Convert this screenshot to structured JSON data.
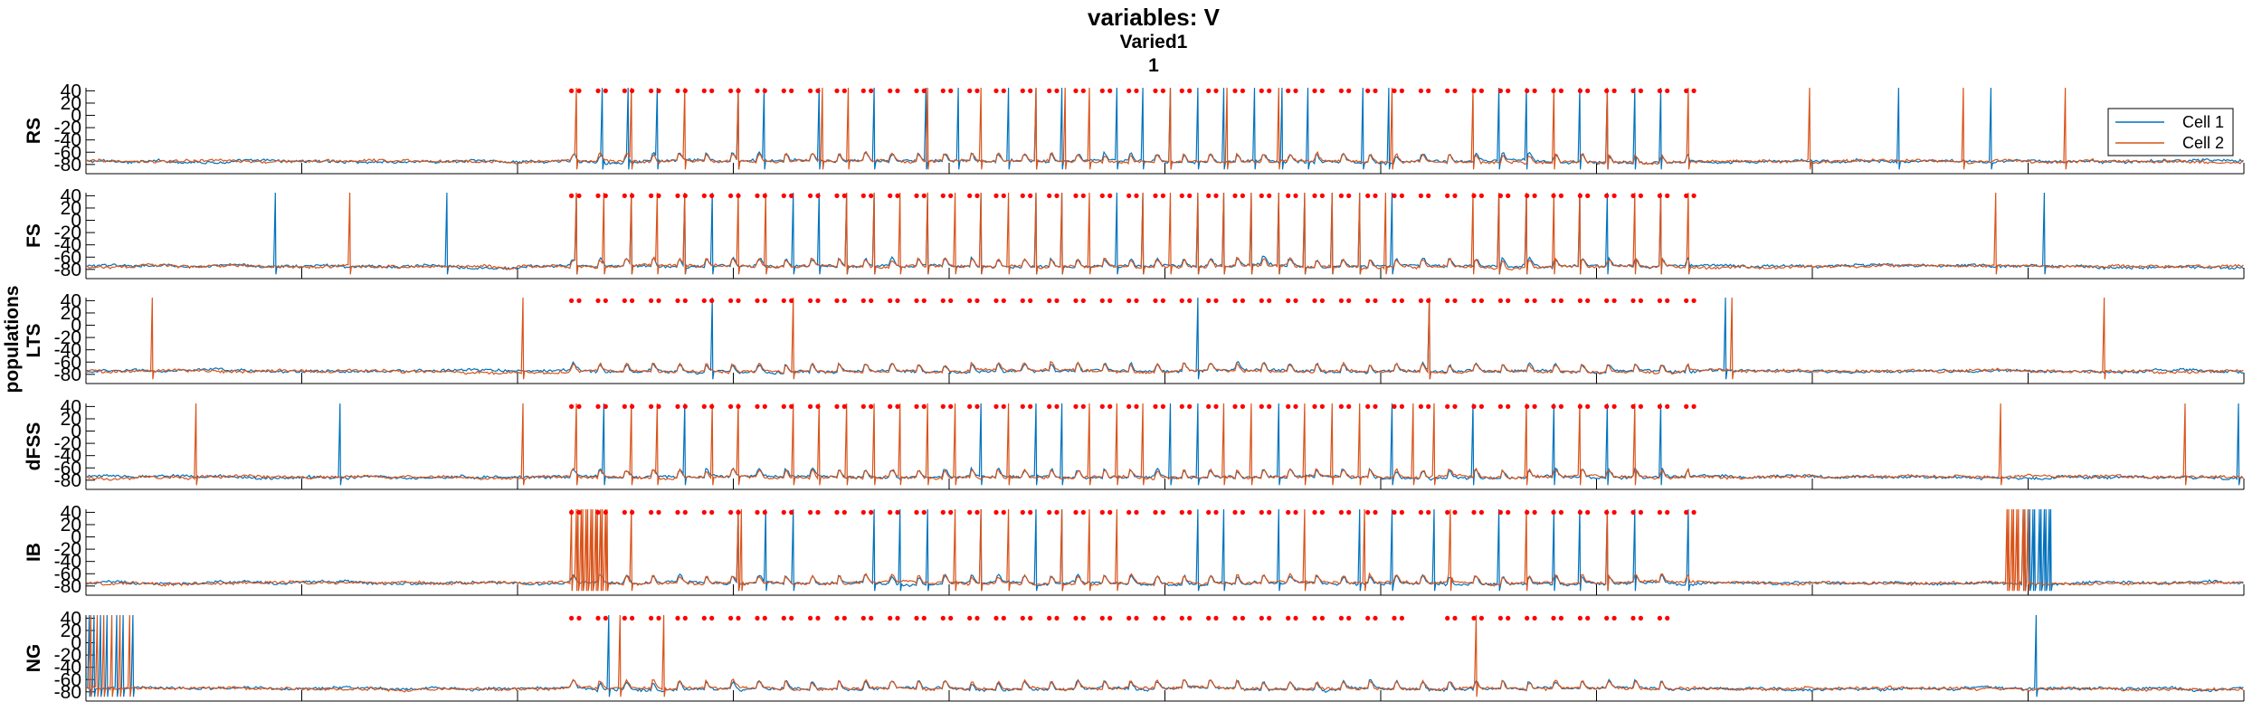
{
  "chart_data": {
    "type": "line",
    "title": "variables: V",
    "subtitle_lines": [
      "Varied1",
      "1"
    ],
    "ylabel": "populations",
    "xlim": [
      0,
      2000
    ],
    "ylim": [
      -95,
      45
    ],
    "x_ticks": [
      "0",
      "200",
      "400",
      "600",
      "800",
      "1000",
      "1200",
      "1400",
      "1600",
      "1800",
      "2000"
    ],
    "y_ticks": [
      "40",
      "20",
      "0",
      "-20",
      "-40",
      "-60",
      "-80"
    ],
    "legend": {
      "entries": [
        "Cell 1",
        "Cell 2"
      ],
      "placement": "top-right of first panel"
    },
    "series_colors": {
      "Cell 1": "#0072BD",
      "Cell 2": "#D95319"
    },
    "marker_color": "#FF0000",
    "marker_y": 40,
    "baseline_mV": -75,
    "panels": [
      {
        "name": "RS",
        "marker_range": [
          450,
          1485
        ],
        "marker_period": 24.6,
        "marker_phase": 450,
        "series": [
          {
            "name": "Cell 1",
            "spikes": [
              478,
              503,
              530,
              604,
              628,
              680,
              730,
              778,
              808,
              855,
              880,
              905,
              955,
              980,
              1005,
              1030,
              1055,
              1083,
              1108,
              1133,
              1183,
              1208,
              1310,
              1335,
              1385,
              1410,
              1435,
              1460,
              1680,
              1765
            ]
          },
          {
            "name": "Cell 2",
            "spikes": [
              455,
              505,
              555,
              605,
              682,
              707,
              780,
              830,
              880,
              908,
              930,
              1005,
              1058,
              1105,
              1210,
              1285,
              1360,
              1410,
              1485,
              1598,
              1740,
              1835
            ]
          }
        ]
      },
      {
        "name": "FS",
        "marker_range": [
          450,
          1485
        ],
        "marker_period": 24.6,
        "marker_phase": 450,
        "series": [
          {
            "name": "Cell 1",
            "spikes": [
              175,
              335,
              455,
              505,
              555,
              580,
              655,
              680,
              705,
              730,
              780,
              830,
              880,
              905,
              955,
              980,
              1030,
              1055,
              1080,
              1105,
              1130,
              1155,
              1180,
              1210,
              1310,
              1335,
              1385,
              1410,
              1460,
              1815
            ]
          },
          {
            "name": "Cell 2",
            "spikes": [
              245,
              455,
              480,
              505,
              530,
              555,
              605,
              630,
              705,
              730,
              755,
              780,
              805,
              830,
              855,
              880,
              905,
              930,
              980,
              1005,
              1030,
              1055,
              1080,
              1105,
              1130,
              1155,
              1180,
              1205,
              1285,
              1310,
              1335,
              1360,
              1385,
              1435,
              1460,
              1485,
              1770
            ]
          }
        ]
      },
      {
        "name": "LTS",
        "marker_range": [
          450,
          1485
        ],
        "marker_period": 24.6,
        "marker_phase": 450,
        "series": [
          {
            "name": "Cell 1",
            "spikes": [
              580,
              1030,
              1245,
              1520
            ]
          },
          {
            "name": "Cell 2",
            "spikes": [
              62,
              405,
              655,
              1245,
              1525,
              1870
            ]
          }
        ]
      },
      {
        "name": "dFSS",
        "marker_range": [
          450,
          1485
        ],
        "marker_period": 24.6,
        "marker_phase": 450,
        "series": [
          {
            "name": "Cell 1",
            "spikes": [
              235,
              480,
              555,
              830,
              880,
              905,
              1005,
              1030,
              1105,
              1210,
              1285,
              1360,
              1410,
              1460,
              1995
            ]
          },
          {
            "name": "Cell 2",
            "spikes": [
              102,
              405,
              455,
              505,
              530,
              580,
              605,
              655,
              680,
              705,
              730,
              755,
              780,
              805,
              855,
              930,
              955,
              980,
              1055,
              1080,
              1130,
              1155,
              1180,
              1230,
              1250,
              1335,
              1385,
              1435,
              1775,
              1945
            ]
          }
        ]
      },
      {
        "name": "IB",
        "marker_range": [
          450,
          1485
        ],
        "marker_period": 24.6,
        "marker_phase": 450,
        "bursts": [
          {
            "series": "Cell 2",
            "start": 450,
            "end": 483,
            "step": 2.2
          },
          {
            "series": "Cell 2",
            "start": 1780,
            "end": 1800,
            "step": 2.2
          },
          {
            "series": "Cell 1",
            "start": 1795,
            "end": 1823,
            "step": 2.2
          }
        ],
        "series": [
          {
            "name": "Cell 1",
            "spikes": [
              605,
              630,
              655,
              730,
              755,
              780,
              830,
              880,
              905,
              1030,
              1055,
              1105,
              1180,
              1210,
              1250,
              1310,
              1360,
              1385,
              1410,
              1435,
              1485
            ]
          },
          {
            "name": "Cell 2",
            "spikes": [
              505,
              605,
              608,
              805,
              830,
              855,
              905,
              930,
              955,
              1130,
              1185,
              1265,
              1335,
              1410
            ]
          }
        ]
      },
      {
        "name": "NG",
        "marker_range": [
          450,
          1475
        ],
        "marker_period": 24.6,
        "marker_phase": 450,
        "marker_gaps": [
          [
            1215,
            1240
          ]
        ],
        "series": [
          {
            "name": "Cell 1",
            "spikes": [
              3,
              8,
              13,
              20,
              28,
              35,
              44,
              485,
              1808
            ]
          },
          {
            "name": "Cell 2",
            "spikes": [
              5,
              11,
              17,
              24,
              32,
              40,
              495,
              535,
              1288
            ]
          }
        ]
      }
    ]
  }
}
